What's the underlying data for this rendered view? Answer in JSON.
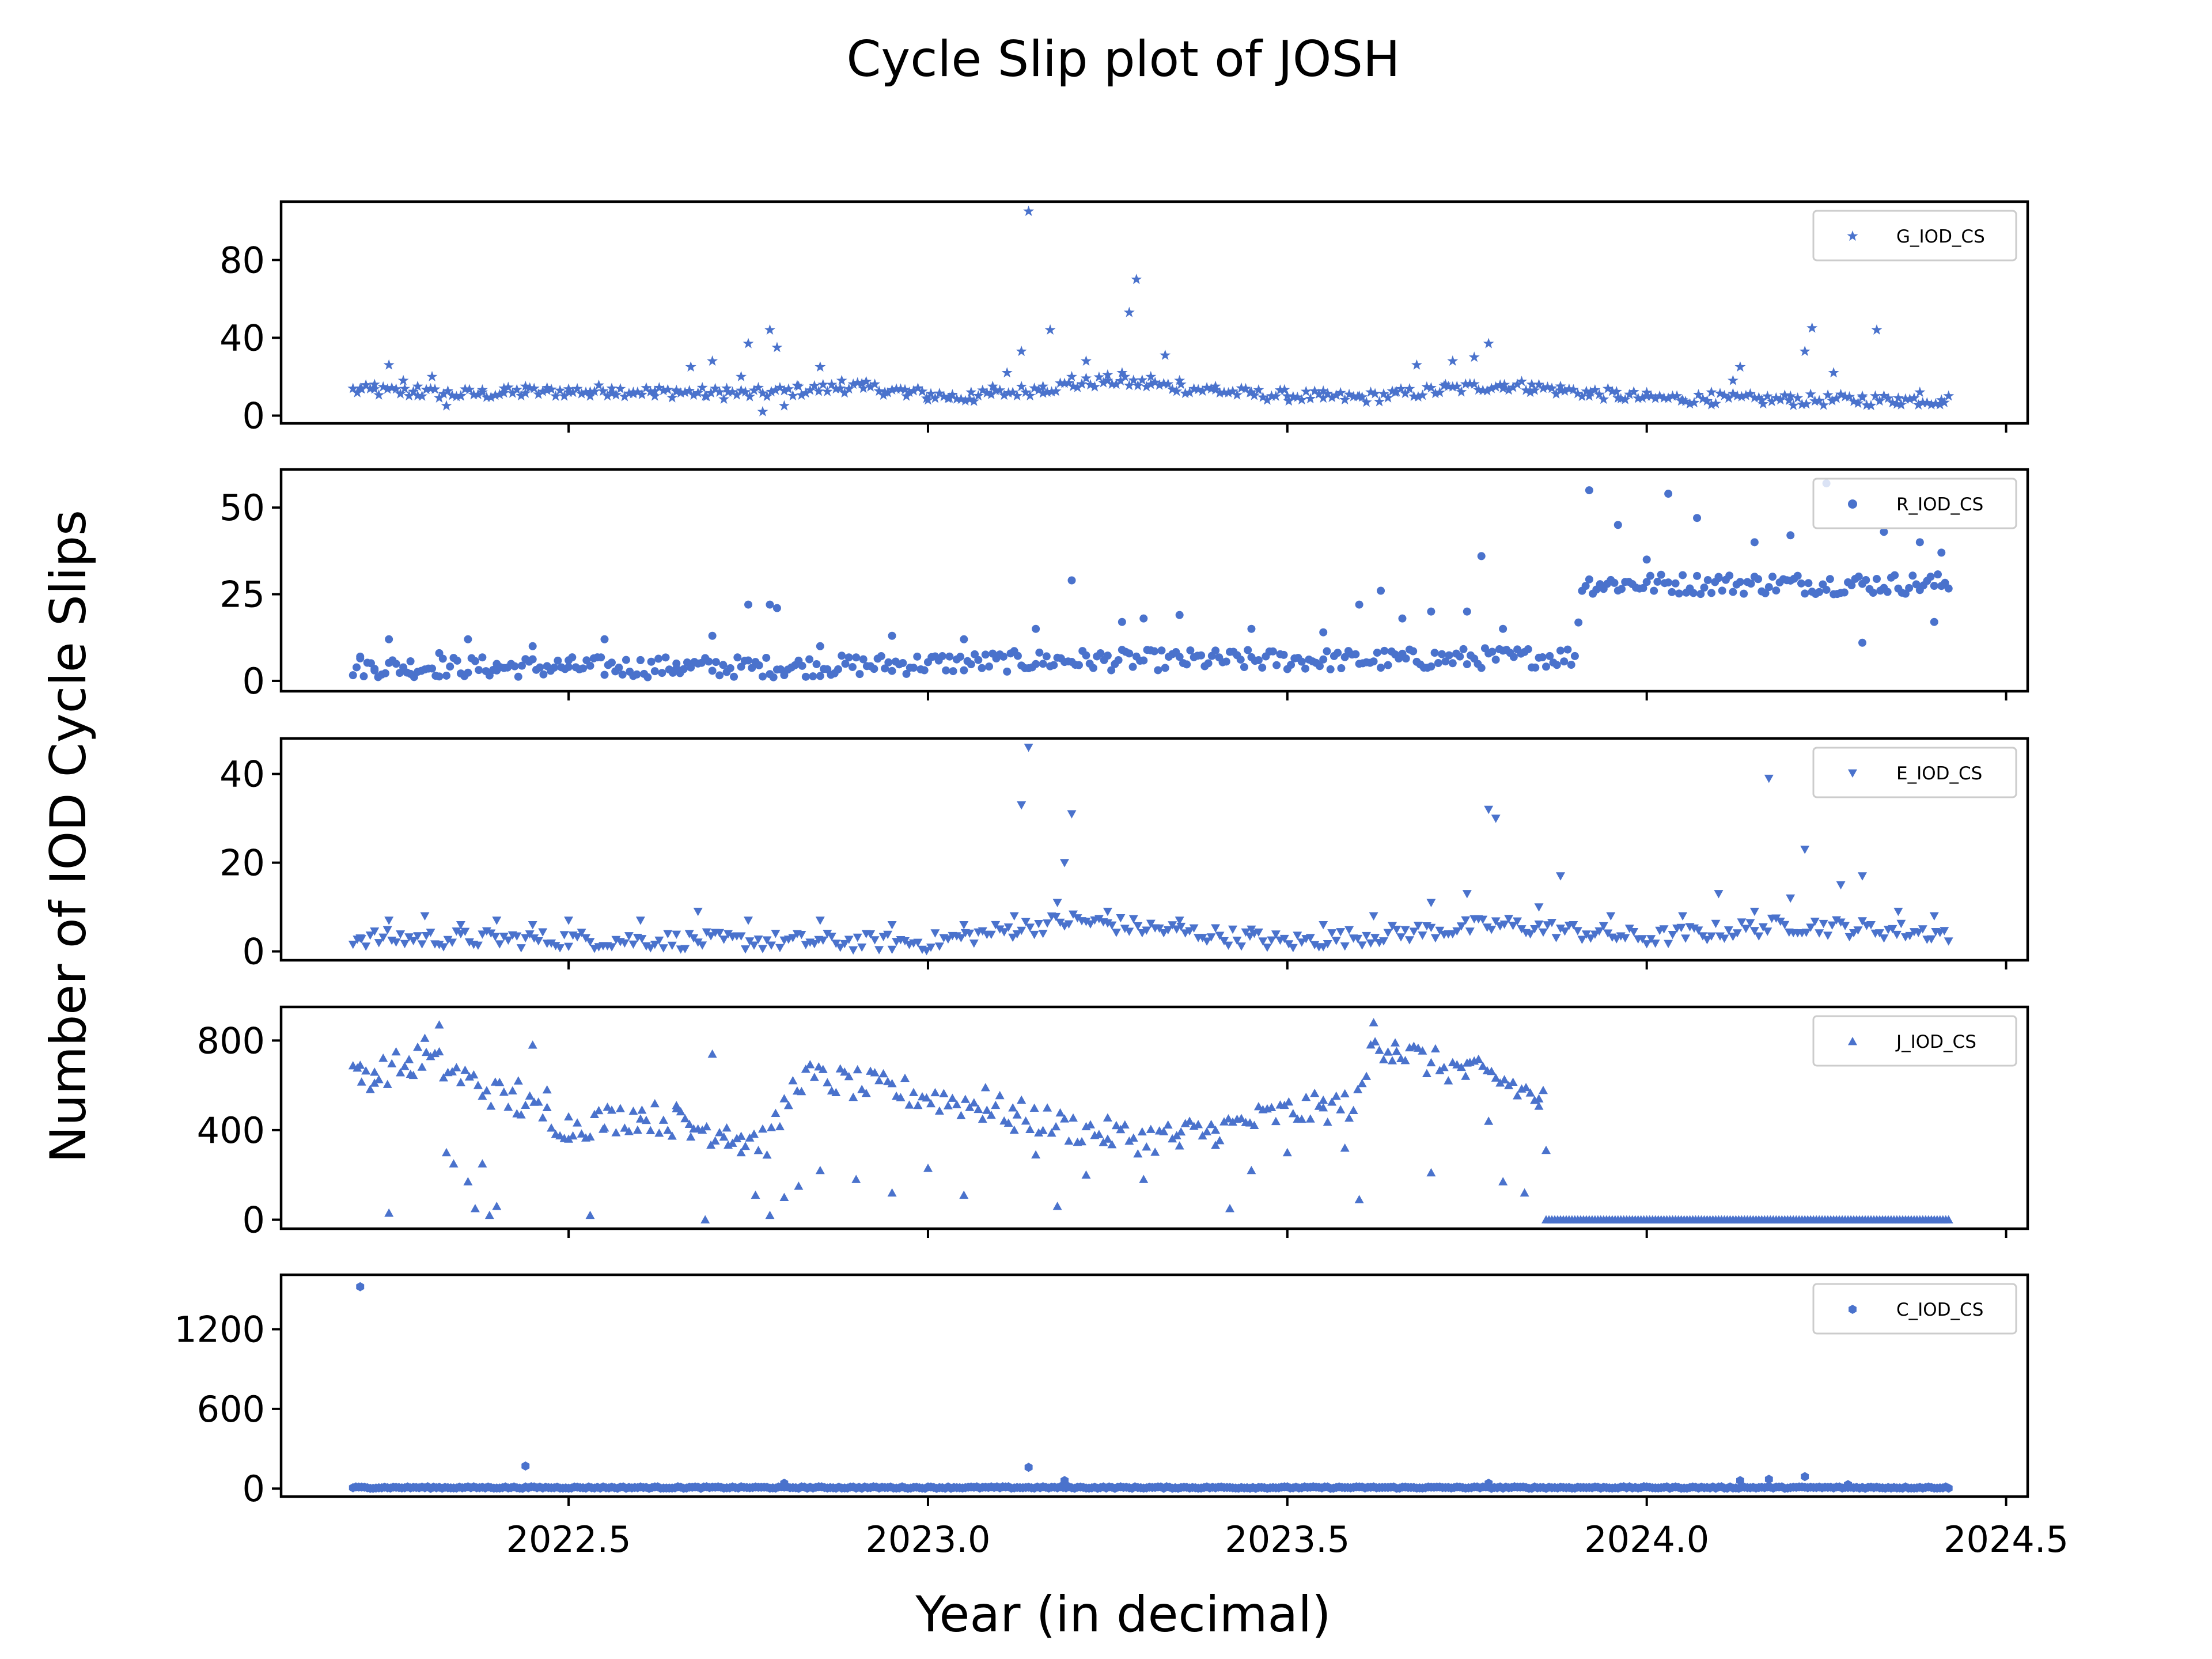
{
  "figure": {
    "title": "Cycle Slip plot of JOSH",
    "xlabel": "Year (in decimal)",
    "ylabel": "Number of IOD Cycle Slips",
    "marker_color": "#4a72cc",
    "xticks": [
      "2022.5",
      "2023.0",
      "2023.5",
      "2024.0",
      "2024.5"
    ]
  },
  "chart_data": [
    {
      "type": "scatter",
      "name": "G_IOD_CS",
      "marker": "star",
      "xlim": [
        2022.1,
        2024.53
      ],
      "ylim": [
        -4,
        110
      ],
      "yticks": [
        0,
        40,
        80
      ],
      "ytick_labels": [
        "0",
        "40",
        "80"
      ],
      "legend": "top-right",
      "points": [
        [
          2022.21,
          14
        ],
        [
          2022.23,
          16
        ],
        [
          2022.25,
          26
        ],
        [
          2022.27,
          18
        ],
        [
          2022.29,
          15
        ],
        [
          2022.31,
          20
        ],
        [
          2022.33,
          5
        ],
        [
          2022.35,
          10
        ],
        [
          2022.38,
          12
        ],
        [
          2022.41,
          14
        ],
        [
          2022.44,
          15
        ],
        [
          2022.47,
          13
        ],
        [
          2022.5,
          12
        ],
        [
          2022.53,
          10
        ],
        [
          2022.56,
          14
        ],
        [
          2022.59,
          12
        ],
        [
          2022.62,
          10
        ],
        [
          2022.65,
          13
        ],
        [
          2022.67,
          25
        ],
        [
          2022.69,
          10
        ],
        [
          2022.7,
          28
        ],
        [
          2022.72,
          14
        ],
        [
          2022.74,
          20
        ],
        [
          2022.75,
          37
        ],
        [
          2022.77,
          2
        ],
        [
          2022.78,
          44
        ],
        [
          2022.79,
          35
        ],
        [
          2022.8,
          5
        ],
        [
          2022.82,
          15
        ],
        [
          2022.85,
          25
        ],
        [
          2022.88,
          18
        ],
        [
          2022.91,
          14
        ],
        [
          2022.94,
          12
        ],
        [
          2022.97,
          10
        ],
        [
          2023.0,
          8
        ],
        [
          2023.03,
          9
        ],
        [
          2023.06,
          12
        ],
        [
          2023.09,
          15
        ],
        [
          2023.11,
          22
        ],
        [
          2023.13,
          33
        ],
        [
          2023.14,
          105
        ],
        [
          2023.16,
          15
        ],
        [
          2023.17,
          44
        ],
        [
          2023.2,
          20
        ],
        [
          2023.22,
          28
        ],
        [
          2023.25,
          18
        ],
        [
          2023.27,
          22
        ],
        [
          2023.28,
          53
        ],
        [
          2023.29,
          70
        ],
        [
          2023.31,
          20
        ],
        [
          2023.33,
          31
        ],
        [
          2023.35,
          18
        ],
        [
          2023.4,
          15
        ],
        [
          2023.45,
          12
        ],
        [
          2023.5,
          10
        ],
        [
          2023.55,
          9
        ],
        [
          2023.6,
          10
        ],
        [
          2023.65,
          12
        ],
        [
          2023.68,
          26
        ],
        [
          2023.72,
          16
        ],
        [
          2023.73,
          28
        ],
        [
          2023.76,
          30
        ],
        [
          2023.78,
          37
        ],
        [
          2023.8,
          14
        ],
        [
          2023.84,
          16
        ],
        [
          2023.88,
          13
        ],
        [
          2023.92,
          10
        ],
        [
          2023.96,
          9
        ],
        [
          2024.0,
          10
        ],
        [
          2024.05,
          8
        ],
        [
          2024.09,
          12
        ],
        [
          2024.12,
          18
        ],
        [
          2024.13,
          25
        ],
        [
          2024.16,
          8
        ],
        [
          2024.2,
          10
        ],
        [
          2024.22,
          33
        ],
        [
          2024.23,
          45
        ],
        [
          2024.26,
          22
        ],
        [
          2024.3,
          10
        ],
        [
          2024.32,
          44
        ],
        [
          2024.35,
          9
        ],
        [
          2024.38,
          12
        ],
        [
          2024.41,
          8
        ]
      ],
      "baseline": {
        "x_start": 2022.2,
        "x_end": 2024.42,
        "step": 0.006,
        "profile": [
          [
            2022.2,
            13
          ],
          [
            2022.35,
            11
          ],
          [
            2022.55,
            13
          ],
          [
            2022.75,
            11
          ],
          [
            2022.9,
            15
          ],
          [
            2023.05,
            9
          ],
          [
            2023.25,
            18
          ],
          [
            2023.45,
            11
          ],
          [
            2023.6,
            9
          ],
          [
            2023.8,
            16
          ],
          [
            2024.0,
            9
          ],
          [
            2024.2,
            8
          ],
          [
            2024.42,
            8
          ]
        ],
        "jitter": 3
      }
    },
    {
      "type": "scatter",
      "name": "R_IOD_CS",
      "marker": "circle",
      "xlim": [
        2022.1,
        2024.53
      ],
      "ylim": [
        -3,
        61
      ],
      "yticks": [
        0,
        25,
        50
      ],
      "ytick_labels": [
        "0",
        "25",
        "50"
      ],
      "legend": "top-right",
      "points": [
        [
          2022.21,
          7
        ],
        [
          2022.23,
          3
        ],
        [
          2022.25,
          12
        ],
        [
          2022.28,
          2
        ],
        [
          2022.32,
          8
        ],
        [
          2022.36,
          12
        ],
        [
          2022.4,
          3
        ],
        [
          2022.45,
          10
        ],
        [
          2022.5,
          4
        ],
        [
          2022.55,
          12
        ],
        [
          2022.6,
          6
        ],
        [
          2022.65,
          5
        ],
        [
          2022.7,
          13
        ],
        [
          2022.75,
          22
        ],
        [
          2022.78,
          22
        ],
        [
          2022.79,
          21
        ],
        [
          2022.85,
          10
        ],
        [
          2022.95,
          13
        ],
        [
          2023.05,
          12
        ],
        [
          2023.15,
          15
        ],
        [
          2023.2,
          29
        ],
        [
          2023.27,
          17
        ],
        [
          2023.3,
          18
        ],
        [
          2023.35,
          19
        ],
        [
          2023.45,
          15
        ],
        [
          2023.55,
          14
        ],
        [
          2023.6,
          22
        ],
        [
          2023.63,
          26
        ],
        [
          2023.66,
          18
        ],
        [
          2023.7,
          20
        ],
        [
          2023.75,
          20
        ],
        [
          2023.77,
          36
        ],
        [
          2023.8,
          15
        ],
        [
          2023.92,
          55
        ],
        [
          2023.96,
          45
        ],
        [
          2024.0,
          35
        ],
        [
          2024.03,
          54
        ],
        [
          2024.07,
          47
        ],
        [
          2024.1,
          30
        ],
        [
          2024.15,
          40
        ],
        [
          2024.2,
          42
        ],
        [
          2024.25,
          57
        ],
        [
          2024.3,
          11
        ],
        [
          2024.33,
          43
        ],
        [
          2024.38,
          40
        ],
        [
          2024.4,
          17
        ],
        [
          2024.41,
          37
        ]
      ],
      "baseline": {
        "x_start": 2022.2,
        "x_end": 2024.42,
        "step": 0.005,
        "profile": [
          [
            2022.2,
            4
          ],
          [
            2022.8,
            4
          ],
          [
            2023.2,
            6
          ],
          [
            2023.6,
            6
          ],
          [
            2023.9,
            7
          ],
          [
            2023.91,
            28
          ],
          [
            2024.42,
            28
          ]
        ],
        "jitter": 3
      }
    },
    {
      "type": "scatter",
      "name": "E_IOD_CS",
      "marker": "triangle-down",
      "xlim": [
        2022.1,
        2024.53
      ],
      "ylim": [
        -2,
        48
      ],
      "yticks": [
        0,
        20,
        40
      ],
      "ytick_labels": [
        "0",
        "20",
        "40"
      ],
      "legend": "top-right",
      "points": [
        [
          2022.21,
          3
        ],
        [
          2022.25,
          7
        ],
        [
          2022.3,
          8
        ],
        [
          2022.35,
          6
        ],
        [
          2022.4,
          7
        ],
        [
          2022.45,
          6
        ],
        [
          2022.5,
          7
        ],
        [
          2022.6,
          7
        ],
        [
          2022.68,
          9
        ],
        [
          2022.75,
          7
        ],
        [
          2022.85,
          7
        ],
        [
          2022.95,
          6
        ],
        [
          2023.05,
          6
        ],
        [
          2023.12,
          8
        ],
        [
          2023.13,
          33
        ],
        [
          2023.14,
          46
        ],
        [
          2023.18,
          11
        ],
        [
          2023.19,
          20
        ],
        [
          2023.2,
          31
        ],
        [
          2023.25,
          9
        ],
        [
          2023.35,
          7
        ],
        [
          2023.45,
          5
        ],
        [
          2023.55,
          6
        ],
        [
          2023.62,
          8
        ],
        [
          2023.7,
          11
        ],
        [
          2023.75,
          13
        ],
        [
          2023.78,
          32
        ],
        [
          2023.79,
          30
        ],
        [
          2023.85,
          10
        ],
        [
          2023.88,
          17
        ],
        [
          2023.95,
          8
        ],
        [
          2024.05,
          8
        ],
        [
          2024.1,
          13
        ],
        [
          2024.15,
          9
        ],
        [
          2024.2,
          12
        ],
        [
          2024.17,
          39
        ],
        [
          2024.22,
          23
        ],
        [
          2024.27,
          15
        ],
        [
          2024.3,
          17
        ],
        [
          2024.35,
          9
        ],
        [
          2024.4,
          8
        ]
      ],
      "baseline": {
        "x_start": 2022.2,
        "x_end": 2024.42,
        "step": 0.006,
        "profile": [
          [
            2022.2,
            3
          ],
          [
            2023.0,
            2
          ],
          [
            2023.2,
            7
          ],
          [
            2023.5,
            2
          ],
          [
            2023.8,
            6
          ],
          [
            2024.0,
            3
          ],
          [
            2024.2,
            6
          ],
          [
            2024.42,
            4
          ]
        ],
        "jitter": 2
      }
    },
    {
      "type": "scatter",
      "name": "J_IOD_CS",
      "marker": "triangle-up",
      "xlim": [
        2022.1,
        2024.53
      ],
      "ylim": [
        -40,
        950
      ],
      "yticks": [
        0,
        400,
        800
      ],
      "ytick_labels": [
        "0",
        "400",
        "800"
      ],
      "legend": "top-right",
      "points": [
        [
          2022.21,
          690
        ],
        [
          2022.23,
          610
        ],
        [
          2022.25,
          30
        ],
        [
          2022.28,
          650
        ],
        [
          2022.3,
          810
        ],
        [
          2022.32,
          870
        ],
        [
          2022.33,
          300
        ],
        [
          2022.34,
          250
        ],
        [
          2022.36,
          170
        ],
        [
          2022.37,
          50
        ],
        [
          2022.38,
          250
        ],
        [
          2022.39,
          20
        ],
        [
          2022.4,
          60
        ],
        [
          2022.43,
          620
        ],
        [
          2022.45,
          780
        ],
        [
          2022.47,
          580
        ],
        [
          2022.5,
          360
        ],
        [
          2022.53,
          20
        ],
        [
          2022.55,
          410
        ],
        [
          2022.6,
          450
        ],
        [
          2022.65,
          510
        ],
        [
          2022.67,
          370
        ],
        [
          2022.69,
          0
        ],
        [
          2022.7,
          740
        ],
        [
          2022.72,
          410
        ],
        [
          2022.74,
          300
        ],
        [
          2022.76,
          110
        ],
        [
          2022.78,
          20
        ],
        [
          2022.8,
          100
        ],
        [
          2022.82,
          150
        ],
        [
          2022.85,
          220
        ],
        [
          2022.9,
          180
        ],
        [
          2022.95,
          120
        ],
        [
          2023.0,
          230
        ],
        [
          2023.05,
          110
        ],
        [
          2023.08,
          590
        ],
        [
          2023.12,
          400
        ],
        [
          2023.15,
          290
        ],
        [
          2023.18,
          60
        ],
        [
          2023.22,
          200
        ],
        [
          2023.25,
          360
        ],
        [
          2023.3,
          180
        ],
        [
          2023.35,
          330
        ],
        [
          2023.4,
          400
        ],
        [
          2023.42,
          50
        ],
        [
          2023.45,
          220
        ],
        [
          2023.5,
          300
        ],
        [
          2023.55,
          500
        ],
        [
          2023.58,
          320
        ],
        [
          2023.6,
          90
        ],
        [
          2023.62,
          880
        ],
        [
          2023.65,
          790
        ],
        [
          2023.7,
          210
        ],
        [
          2023.75,
          700
        ],
        [
          2023.78,
          440
        ],
        [
          2023.8,
          170
        ],
        [
          2023.83,
          120
        ],
        [
          2023.85,
          540
        ],
        [
          2023.86,
          310
        ]
      ],
      "baseline": {
        "x_start": 2022.2,
        "x_end": 2023.86,
        "step": 0.006,
        "profile": [
          [
            2022.2,
            630
          ],
          [
            2022.3,
            720
          ],
          [
            2022.4,
            560
          ],
          [
            2022.5,
            420
          ],
          [
            2022.6,
            470
          ],
          [
            2022.7,
            400
          ],
          [
            2022.78,
            350
          ],
          [
            2022.82,
            640
          ],
          [
            2022.95,
            580
          ],
          [
            2023.1,
            490
          ],
          [
            2023.2,
            410
          ],
          [
            2023.3,
            360
          ],
          [
            2023.4,
            400
          ],
          [
            2023.5,
            480
          ],
          [
            2023.6,
            520
          ],
          [
            2023.62,
            800
          ],
          [
            2023.7,
            700
          ],
          [
            2023.8,
            620
          ],
          [
            2023.86,
            520
          ]
        ],
        "jitter": 70
      },
      "zero_run": {
        "x_start": 2023.86,
        "x_end": 2024.42,
        "step": 0.004,
        "value": 0
      }
    },
    {
      "type": "scatter",
      "name": "C_IOD_CS",
      "marker": "hexagon",
      "xlim": [
        2022.1,
        2024.53
      ],
      "ylim": [
        -60,
        1610
      ],
      "yticks": [
        0,
        600,
        1200
      ],
      "ytick_labels": [
        "0",
        "600",
        "1200"
      ],
      "legend": "top-right",
      "points": [
        [
          2022.21,
          1520
        ],
        [
          2022.44,
          170
        ],
        [
          2022.8,
          40
        ],
        [
          2023.14,
          160
        ],
        [
          2023.19,
          60
        ],
        [
          2023.78,
          40
        ],
        [
          2024.13,
          60
        ],
        [
          2024.17,
          70
        ],
        [
          2024.22,
          90
        ],
        [
          2024.28,
          30
        ]
      ],
      "baseline": {
        "x_start": 2022.2,
        "x_end": 2024.42,
        "step": 0.004,
        "profile": [
          [
            2022.2,
            8
          ],
          [
            2024.42,
            8
          ]
        ],
        "jitter": 6
      }
    }
  ]
}
